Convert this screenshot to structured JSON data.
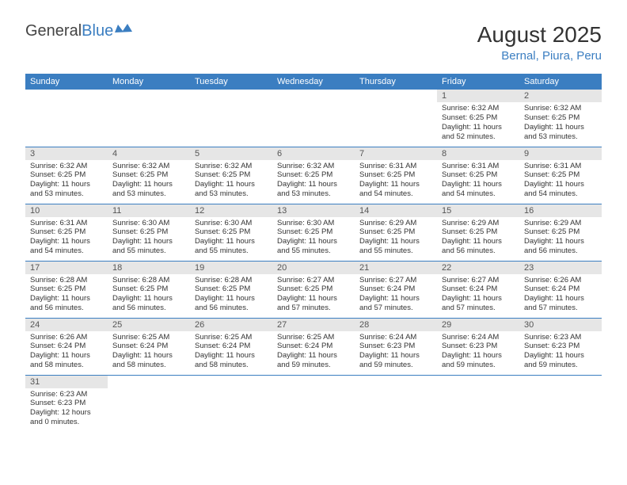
{
  "logo": {
    "general": "General",
    "blue": "Blue"
  },
  "title": "August 2025",
  "location": "Bernal, Piura, Peru",
  "colors": {
    "header_bg": "#3b7ec1",
    "header_text": "#ffffff",
    "daynum_bg": "#e6e6e6",
    "row_border": "#3b7ec1",
    "logo_blue": "#3b7ec1",
    "text": "#333333"
  },
  "weekdays": [
    "Sunday",
    "Monday",
    "Tuesday",
    "Wednesday",
    "Thursday",
    "Friday",
    "Saturday"
  ],
  "weeks": [
    [
      {
        "n": "",
        "sr": "",
        "ss": "",
        "dl": ""
      },
      {
        "n": "",
        "sr": "",
        "ss": "",
        "dl": ""
      },
      {
        "n": "",
        "sr": "",
        "ss": "",
        "dl": ""
      },
      {
        "n": "",
        "sr": "",
        "ss": "",
        "dl": ""
      },
      {
        "n": "",
        "sr": "",
        "ss": "",
        "dl": ""
      },
      {
        "n": "1",
        "sr": "Sunrise: 6:32 AM",
        "ss": "Sunset: 6:25 PM",
        "dl": "Daylight: 11 hours and 52 minutes."
      },
      {
        "n": "2",
        "sr": "Sunrise: 6:32 AM",
        "ss": "Sunset: 6:25 PM",
        "dl": "Daylight: 11 hours and 53 minutes."
      }
    ],
    [
      {
        "n": "3",
        "sr": "Sunrise: 6:32 AM",
        "ss": "Sunset: 6:25 PM",
        "dl": "Daylight: 11 hours and 53 minutes."
      },
      {
        "n": "4",
        "sr": "Sunrise: 6:32 AM",
        "ss": "Sunset: 6:25 PM",
        "dl": "Daylight: 11 hours and 53 minutes."
      },
      {
        "n": "5",
        "sr": "Sunrise: 6:32 AM",
        "ss": "Sunset: 6:25 PM",
        "dl": "Daylight: 11 hours and 53 minutes."
      },
      {
        "n": "6",
        "sr": "Sunrise: 6:32 AM",
        "ss": "Sunset: 6:25 PM",
        "dl": "Daylight: 11 hours and 53 minutes."
      },
      {
        "n": "7",
        "sr": "Sunrise: 6:31 AM",
        "ss": "Sunset: 6:25 PM",
        "dl": "Daylight: 11 hours and 54 minutes."
      },
      {
        "n": "8",
        "sr": "Sunrise: 6:31 AM",
        "ss": "Sunset: 6:25 PM",
        "dl": "Daylight: 11 hours and 54 minutes."
      },
      {
        "n": "9",
        "sr": "Sunrise: 6:31 AM",
        "ss": "Sunset: 6:25 PM",
        "dl": "Daylight: 11 hours and 54 minutes."
      }
    ],
    [
      {
        "n": "10",
        "sr": "Sunrise: 6:31 AM",
        "ss": "Sunset: 6:25 PM",
        "dl": "Daylight: 11 hours and 54 minutes."
      },
      {
        "n": "11",
        "sr": "Sunrise: 6:30 AM",
        "ss": "Sunset: 6:25 PM",
        "dl": "Daylight: 11 hours and 55 minutes."
      },
      {
        "n": "12",
        "sr": "Sunrise: 6:30 AM",
        "ss": "Sunset: 6:25 PM",
        "dl": "Daylight: 11 hours and 55 minutes."
      },
      {
        "n": "13",
        "sr": "Sunrise: 6:30 AM",
        "ss": "Sunset: 6:25 PM",
        "dl": "Daylight: 11 hours and 55 minutes."
      },
      {
        "n": "14",
        "sr": "Sunrise: 6:29 AM",
        "ss": "Sunset: 6:25 PM",
        "dl": "Daylight: 11 hours and 55 minutes."
      },
      {
        "n": "15",
        "sr": "Sunrise: 6:29 AM",
        "ss": "Sunset: 6:25 PM",
        "dl": "Daylight: 11 hours and 56 minutes."
      },
      {
        "n": "16",
        "sr": "Sunrise: 6:29 AM",
        "ss": "Sunset: 6:25 PM",
        "dl": "Daylight: 11 hours and 56 minutes."
      }
    ],
    [
      {
        "n": "17",
        "sr": "Sunrise: 6:28 AM",
        "ss": "Sunset: 6:25 PM",
        "dl": "Daylight: 11 hours and 56 minutes."
      },
      {
        "n": "18",
        "sr": "Sunrise: 6:28 AM",
        "ss": "Sunset: 6:25 PM",
        "dl": "Daylight: 11 hours and 56 minutes."
      },
      {
        "n": "19",
        "sr": "Sunrise: 6:28 AM",
        "ss": "Sunset: 6:25 PM",
        "dl": "Daylight: 11 hours and 56 minutes."
      },
      {
        "n": "20",
        "sr": "Sunrise: 6:27 AM",
        "ss": "Sunset: 6:25 PM",
        "dl": "Daylight: 11 hours and 57 minutes."
      },
      {
        "n": "21",
        "sr": "Sunrise: 6:27 AM",
        "ss": "Sunset: 6:24 PM",
        "dl": "Daylight: 11 hours and 57 minutes."
      },
      {
        "n": "22",
        "sr": "Sunrise: 6:27 AM",
        "ss": "Sunset: 6:24 PM",
        "dl": "Daylight: 11 hours and 57 minutes."
      },
      {
        "n": "23",
        "sr": "Sunrise: 6:26 AM",
        "ss": "Sunset: 6:24 PM",
        "dl": "Daylight: 11 hours and 57 minutes."
      }
    ],
    [
      {
        "n": "24",
        "sr": "Sunrise: 6:26 AM",
        "ss": "Sunset: 6:24 PM",
        "dl": "Daylight: 11 hours and 58 minutes."
      },
      {
        "n": "25",
        "sr": "Sunrise: 6:25 AM",
        "ss": "Sunset: 6:24 PM",
        "dl": "Daylight: 11 hours and 58 minutes."
      },
      {
        "n": "26",
        "sr": "Sunrise: 6:25 AM",
        "ss": "Sunset: 6:24 PM",
        "dl": "Daylight: 11 hours and 58 minutes."
      },
      {
        "n": "27",
        "sr": "Sunrise: 6:25 AM",
        "ss": "Sunset: 6:24 PM",
        "dl": "Daylight: 11 hours and 59 minutes."
      },
      {
        "n": "28",
        "sr": "Sunrise: 6:24 AM",
        "ss": "Sunset: 6:23 PM",
        "dl": "Daylight: 11 hours and 59 minutes."
      },
      {
        "n": "29",
        "sr": "Sunrise: 6:24 AM",
        "ss": "Sunset: 6:23 PM",
        "dl": "Daylight: 11 hours and 59 minutes."
      },
      {
        "n": "30",
        "sr": "Sunrise: 6:23 AM",
        "ss": "Sunset: 6:23 PM",
        "dl": "Daylight: 11 hours and 59 minutes."
      }
    ],
    [
      {
        "n": "31",
        "sr": "Sunrise: 6:23 AM",
        "ss": "Sunset: 6:23 PM",
        "dl": "Daylight: 12 hours and 0 minutes."
      },
      {
        "n": "",
        "sr": "",
        "ss": "",
        "dl": ""
      },
      {
        "n": "",
        "sr": "",
        "ss": "",
        "dl": ""
      },
      {
        "n": "",
        "sr": "",
        "ss": "",
        "dl": ""
      },
      {
        "n": "",
        "sr": "",
        "ss": "",
        "dl": ""
      },
      {
        "n": "",
        "sr": "",
        "ss": "",
        "dl": ""
      },
      {
        "n": "",
        "sr": "",
        "ss": "",
        "dl": ""
      }
    ]
  ]
}
